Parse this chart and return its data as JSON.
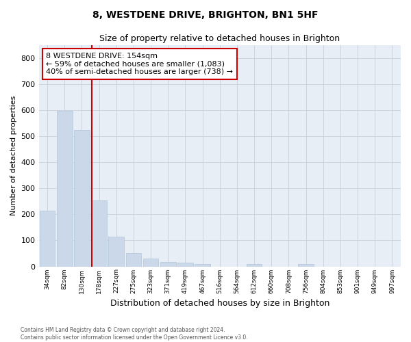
{
  "title": "8, WESTDENE DRIVE, BRIGHTON, BN1 5HF",
  "subtitle": "Size of property relative to detached houses in Brighton",
  "xlabel": "Distribution of detached houses by size in Brighton",
  "ylabel": "Number of detached properties",
  "bar_color": "#cad8ea",
  "bar_edgecolor": "#b0c4da",
  "grid_color": "#c8d0dc",
  "background_color": "#e8eef6",
  "fig_background": "#ffffff",
  "bins": [
    "34sqm",
    "82sqm",
    "130sqm",
    "178sqm",
    "227sqm",
    "275sqm",
    "323sqm",
    "371sqm",
    "419sqm",
    "467sqm",
    "516sqm",
    "564sqm",
    "612sqm",
    "660sqm",
    "708sqm",
    "756sqm",
    "804sqm",
    "853sqm",
    "901sqm",
    "949sqm",
    "997sqm"
  ],
  "values": [
    213,
    597,
    524,
    253,
    115,
    52,
    31,
    18,
    14,
    10,
    0,
    0,
    10,
    0,
    0,
    8,
    0,
    0,
    0,
    0,
    0
  ],
  "ylim": [
    0,
    850
  ],
  "yticks": [
    0,
    100,
    200,
    300,
    400,
    500,
    600,
    700,
    800
  ],
  "vline_x": 2.57,
  "annotation_line1": "8 WESTDENE DRIVE: 154sqm",
  "annotation_line2": "← 59% of detached houses are smaller (1,083)",
  "annotation_line3": "40% of semi-detached houses are larger (738) →",
  "annotation_box_color": "#ffffff",
  "annotation_box_edgecolor": "#cc0000",
  "vline_color": "#cc0000",
  "footer_line1": "Contains HM Land Registry data © Crown copyright and database right 2024.",
  "footer_line2": "Contains public sector information licensed under the Open Government Licence v3.0."
}
